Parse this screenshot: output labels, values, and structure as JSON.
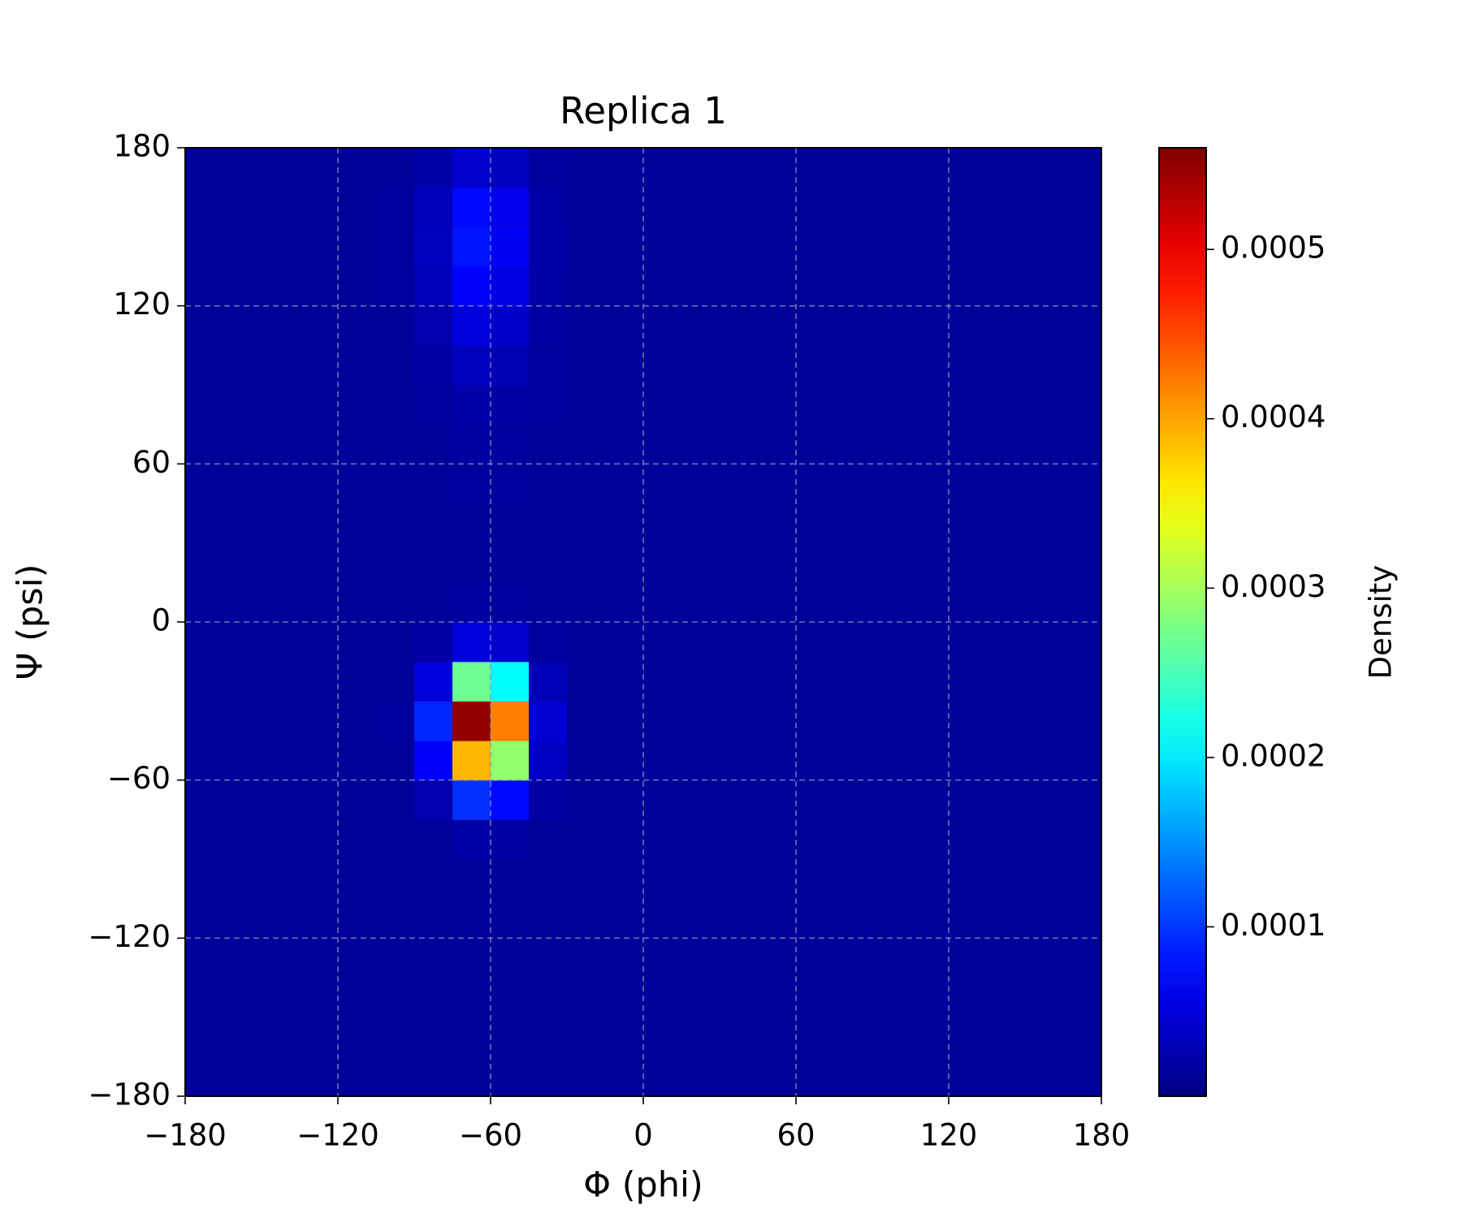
{
  "chart_data": {
    "type": "heatmap",
    "title": "Replica 1",
    "x_label": "Φ (phi)",
    "y_label": "Ψ (psi)",
    "colorbar_label": "Density",
    "colormap": "jet",
    "grid": true,
    "xbins": [
      -180,
      -165,
      -150,
      -135,
      -120,
      -105,
      -90,
      -75,
      -60,
      -45,
      -30,
      -15,
      0,
      15,
      30,
      45,
      60,
      75,
      90,
      105,
      120,
      135,
      150,
      165,
      180
    ],
    "ybins": [
      -180,
      -165,
      -150,
      -135,
      -120,
      -105,
      -90,
      -75,
      -60,
      -45,
      -30,
      -15,
      0,
      15,
      30,
      45,
      60,
      75,
      90,
      105,
      120,
      135,
      150,
      165,
      180
    ],
    "z": [
      [
        1.5e-05,
        1.5e-05,
        1.5e-05,
        1.5e-05,
        1.5e-05,
        1.5e-05,
        1.5e-05,
        1.5e-05,
        1.5e-05,
        1.5e-05,
        1.5e-05,
        1.5e-05,
        1.5e-05,
        1.5e-05,
        1.5e-05,
        1.5e-05,
        1.5e-05,
        1.5e-05,
        1.5e-05,
        1.5e-05,
        1.5e-05,
        1.5e-05,
        1.5e-05,
        1.5e-05
      ],
      [
        1.5e-05,
        1.5e-05,
        1.5e-05,
        1.5e-05,
        1.5e-05,
        1.5e-05,
        1.5e-05,
        1.5e-05,
        1.5e-05,
        1.5e-05,
        1.5e-05,
        1.5e-05,
        1.5e-05,
        1.5e-05,
        1.5e-05,
        1.5e-05,
        1.5e-05,
        1.5e-05,
        1.5e-05,
        1.5e-05,
        1.5e-05,
        1.5e-05,
        1.5e-05,
        1.5e-05
      ],
      [
        1.5e-05,
        1.5e-05,
        1.5e-05,
        1.5e-05,
        1.5e-05,
        1.5e-05,
        1.5e-05,
        1.5e-05,
        1.5e-05,
        1.5e-05,
        1.5e-05,
        1.5e-05,
        1.5e-05,
        1.5e-05,
        1.5e-05,
        1.5e-05,
        1.5e-05,
        1.5e-05,
        1.5e-05,
        1.5e-05,
        1.5e-05,
        1.5e-05,
        1.5e-05,
        1.5e-05
      ],
      [
        1.5e-05,
        1.5e-05,
        1.5e-05,
        1.5e-05,
        1.5e-05,
        1.5e-05,
        1.5e-05,
        1.5e-05,
        1.5e-05,
        1.5e-05,
        1.5e-05,
        1.5e-05,
        1.5e-05,
        1.5e-05,
        1.5e-05,
        1.5e-05,
        1.5e-05,
        1.5e-05,
        1.5e-05,
        1.5e-05,
        1.5e-05,
        1.5e-05,
        1.5e-05,
        1.5e-05
      ],
      [
        1.5e-05,
        1.5e-05,
        1.5e-05,
        1.5e-05,
        1.5e-05,
        1.5e-05,
        1.5e-05,
        1.5e-05,
        1.5e-05,
        1.5e-05,
        1.5e-05,
        1.5e-05,
        1.5e-05,
        1.5e-05,
        1.5e-05,
        1.5e-05,
        1.5e-05,
        1.5e-05,
        1.5e-05,
        1.5e-05,
        1.5e-05,
        1.5e-05,
        1.5e-05,
        1.5e-05
      ],
      [
        1.5e-05,
        1.5e-05,
        1.5e-05,
        1.5e-05,
        1.5e-05,
        1.5e-05,
        1.5e-05,
        1.5e-05,
        1.5e-05,
        1.5e-05,
        1.5e-05,
        1.5e-05,
        1.5e-05,
        1.5e-05,
        1.5e-05,
        1.5e-05,
        1.5e-05,
        1.5e-05,
        1.5e-05,
        1.5e-05,
        1.5e-05,
        1.5e-05,
        1.5e-05,
        1.5e-05
      ],
      [
        1.5e-05,
        1.5e-05,
        1.5e-05,
        1.5e-05,
        1.5e-05,
        1.5e-05,
        1.5e-05,
        2.1e-05,
        1.9e-05,
        1.5e-05,
        1.5e-05,
        1.5e-05,
        1.5e-05,
        1.5e-05,
        1.5e-05,
        1.5e-05,
        1.5e-05,
        1.5e-05,
        1.5e-05,
        1.5e-05,
        1.5e-05,
        1.5e-05,
        1.5e-05,
        1.5e-05
      ],
      [
        1.5e-05,
        1.5e-05,
        1.5e-05,
        1.5e-05,
        1.5e-05,
        1.5e-05,
        2.6e-05,
        9.6e-05,
        7.5e-05,
        2e-05,
        1.5e-05,
        1.5e-05,
        1.5e-05,
        1.5e-05,
        1.5e-05,
        1.5e-05,
        1.5e-05,
        1.5e-05,
        1.5e-05,
        1.5e-05,
        1.5e-05,
        1.5e-05,
        1.5e-05,
        1.5e-05
      ],
      [
        1.5e-05,
        1.5e-05,
        1.5e-05,
        1.5e-05,
        1.5e-05,
        1.5e-05,
        6.7e-05,
        0.00039,
        0.00029,
        3.7e-05,
        1.5e-05,
        1.5e-05,
        1.5e-05,
        1.5e-05,
        1.5e-05,
        1.5e-05,
        1.5e-05,
        1.5e-05,
        1.5e-05,
        1.5e-05,
        1.5e-05,
        1.5e-05,
        1.5e-05,
        1.5e-05
      ],
      [
        1.5e-05,
        1.5e-05,
        1.5e-05,
        1.5e-05,
        1.5e-05,
        1.6e-05,
        9.1e-05,
        0.00055,
        0.00042,
        4.7e-05,
        1.5e-05,
        1.5e-05,
        1.5e-05,
        1.5e-05,
        1.5e-05,
        1.5e-05,
        1.5e-05,
        1.5e-05,
        1.5e-05,
        1.5e-05,
        1.5e-05,
        1.5e-05,
        1.5e-05,
        1.5e-05
      ],
      [
        1.5e-05,
        1.5e-05,
        1.5e-05,
        1.5e-05,
        1.5e-05,
        1.5e-05,
        5.1e-05,
        0.00027,
        0.00021,
        3e-05,
        1.5e-05,
        1.5e-05,
        1.5e-05,
        1.5e-05,
        1.5e-05,
        1.5e-05,
        1.5e-05,
        1.5e-05,
        1.5e-05,
        1.5e-05,
        1.5e-05,
        1.5e-05,
        1.5e-05,
        1.5e-05
      ],
      [
        1.5e-05,
        1.5e-05,
        1.5e-05,
        1.5e-05,
        1.5e-05,
        1.5e-05,
        2e-05,
        5.2e-05,
        4.3e-05,
        1.7e-05,
        1.5e-05,
        1.5e-05,
        1.5e-05,
        1.5e-05,
        1.5e-05,
        1.5e-05,
        1.5e-05,
        1.5e-05,
        1.5e-05,
        1.5e-05,
        1.5e-05,
        1.5e-05,
        1.5e-05,
        1.5e-05
      ],
      [
        1.5e-05,
        1.5e-05,
        1.5e-05,
        1.5e-05,
        1.5e-05,
        1.5e-05,
        1.5e-05,
        1.7e-05,
        1.6e-05,
        1.5e-05,
        1.5e-05,
        1.5e-05,
        1.5e-05,
        1.5e-05,
        1.5e-05,
        1.5e-05,
        1.5e-05,
        1.5e-05,
        1.5e-05,
        1.5e-05,
        1.5e-05,
        1.5e-05,
        1.5e-05,
        1.5e-05
      ],
      [
        1.5e-05,
        1.5e-05,
        1.5e-05,
        1.5e-05,
        1.5e-05,
        1.5e-05,
        1.5e-05,
        1.5e-05,
        1.5e-05,
        1.5e-05,
        1.5e-05,
        1.5e-05,
        1.5e-05,
        1.5e-05,
        1.5e-05,
        1.5e-05,
        1.5e-05,
        1.5e-05,
        1.5e-05,
        1.5e-05,
        1.5e-05,
        1.5e-05,
        1.5e-05,
        1.5e-05
      ],
      [
        1.5e-05,
        1.5e-05,
        1.5e-05,
        1.5e-05,
        1.5e-05,
        1.5e-05,
        1.5e-05,
        1.5e-05,
        1.5e-05,
        1.5e-05,
        1.5e-05,
        1.5e-05,
        1.5e-05,
        1.5e-05,
        1.5e-05,
        1.5e-05,
        1.5e-05,
        1.5e-05,
        1.5e-05,
        1.5e-05,
        1.5e-05,
        1.5e-05,
        1.5e-05,
        1.5e-05
      ],
      [
        1.5e-05,
        1.5e-05,
        1.5e-05,
        1.5e-05,
        1.5e-05,
        1.5e-05,
        1.5e-05,
        1.6e-05,
        1.6e-05,
        1.5e-05,
        1.5e-05,
        1.5e-05,
        1.5e-05,
        1.5e-05,
        1.5e-05,
        1.5e-05,
        1.5e-05,
        1.5e-05,
        1.5e-05,
        1.5e-05,
        1.5e-05,
        1.5e-05,
        1.5e-05,
        1.5e-05
      ],
      [
        1.5e-05,
        1.5e-05,
        1.5e-05,
        1.5e-05,
        1.5e-05,
        1.5e-05,
        1.5e-05,
        1.8e-05,
        1.7e-05,
        1.5e-05,
        1.5e-05,
        1.5e-05,
        1.5e-05,
        1.5e-05,
        1.5e-05,
        1.5e-05,
        1.5e-05,
        1.5e-05,
        1.5e-05,
        1.5e-05,
        1.5e-05,
        1.5e-05,
        1.5e-05,
        1.5e-05
      ],
      [
        1.5e-05,
        1.5e-05,
        1.5e-05,
        1.5e-05,
        1.5e-05,
        1.5e-05,
        1.7e-05,
        2.2e-05,
        2e-05,
        1.6e-05,
        1.5e-05,
        1.5e-05,
        1.5e-05,
        1.5e-05,
        1.5e-05,
        1.5e-05,
        1.5e-05,
        1.5e-05,
        1.5e-05,
        1.5e-05,
        1.5e-05,
        1.5e-05,
        1.5e-05,
        1.5e-05
      ],
      [
        1.5e-05,
        1.5e-05,
        1.5e-05,
        1.5e-05,
        1.5e-05,
        1.5e-05,
        2e-05,
        3.4e-05,
        2.9e-05,
        1.7e-05,
        1.5e-05,
        1.5e-05,
        1.5e-05,
        1.5e-05,
        1.5e-05,
        1.5e-05,
        1.5e-05,
        1.5e-05,
        1.5e-05,
        1.5e-05,
        1.5e-05,
        1.5e-05,
        1.5e-05,
        1.5e-05
      ],
      [
        1.5e-05,
        1.5e-05,
        1.5e-05,
        1.5e-05,
        1.5e-05,
        1.5e-05,
        2.5e-05,
        5.1e-05,
        4.1e-05,
        1.9e-05,
        1.5e-05,
        1.5e-05,
        1.5e-05,
        1.5e-05,
        1.5e-05,
        1.5e-05,
        1.5e-05,
        1.5e-05,
        1.5e-05,
        1.5e-05,
        1.5e-05,
        1.5e-05,
        1.5e-05,
        1.5e-05
      ],
      [
        1.5e-05,
        1.5e-05,
        1.5e-05,
        1.5e-05,
        1.5e-05,
        1.6e-05,
        3.1e-05,
        7e-05,
        5.5e-05,
        2.1e-05,
        1.5e-05,
        1.5e-05,
        1.5e-05,
        1.5e-05,
        1.5e-05,
        1.5e-05,
        1.5e-05,
        1.5e-05,
        1.5e-05,
        1.5e-05,
        1.5e-05,
        1.5e-05,
        1.5e-05,
        1.5e-05
      ],
      [
        1.5e-05,
        1.5e-05,
        1.5e-05,
        1.5e-05,
        1.5e-05,
        1.6e-05,
        3.4e-05,
        8e-05,
        6.3e-05,
        2.2e-05,
        1.5e-05,
        1.5e-05,
        1.5e-05,
        1.5e-05,
        1.5e-05,
        1.5e-05,
        1.5e-05,
        1.5e-05,
        1.5e-05,
        1.5e-05,
        1.5e-05,
        1.5e-05,
        1.5e-05,
        1.5e-05
      ],
      [
        1.5e-05,
        1.5e-05,
        1.5e-05,
        1.5e-05,
        1.5e-05,
        1.6e-05,
        3.2e-05,
        7.5e-05,
        5.9e-05,
        2.1e-05,
        1.5e-05,
        1.5e-05,
        1.5e-05,
        1.5e-05,
        1.5e-05,
        1.5e-05,
        1.5e-05,
        1.5e-05,
        1.5e-05,
        1.5e-05,
        1.5e-05,
        1.5e-05,
        1.5e-05,
        1.5e-05
      ],
      [
        1.5e-05,
        1.5e-05,
        1.5e-05,
        1.5e-05,
        1.5e-05,
        1.5e-05,
        2.3e-05,
        4.3e-05,
        3.5e-05,
        1.8e-05,
        1.5e-05,
        1.5e-05,
        1.5e-05,
        1.5e-05,
        1.5e-05,
        1.5e-05,
        1.5e-05,
        1.5e-05,
        1.5e-05,
        1.5e-05,
        1.5e-05,
        1.5e-05,
        1.5e-05,
        1.5e-05
      ]
    ],
    "xlim": [
      -180,
      180
    ],
    "ylim": [
      -180,
      180
    ],
    "xticks": [
      {
        "value": -180,
        "label": "−180"
      },
      {
        "value": -120,
        "label": "−120"
      },
      {
        "value": -60,
        "label": "−60"
      },
      0,
      60,
      120,
      180
    ],
    "yticks": [
      {
        "value": -180,
        "label": "−180"
      },
      {
        "value": -120,
        "label": "−120"
      },
      {
        "value": -60,
        "label": "−60"
      },
      0,
      60,
      120,
      180
    ],
    "clim": [
      0,
      0.00056
    ],
    "cticks": [
      0.0001,
      0.0002,
      0.0003,
      0.0004,
      0.0005
    ]
  }
}
